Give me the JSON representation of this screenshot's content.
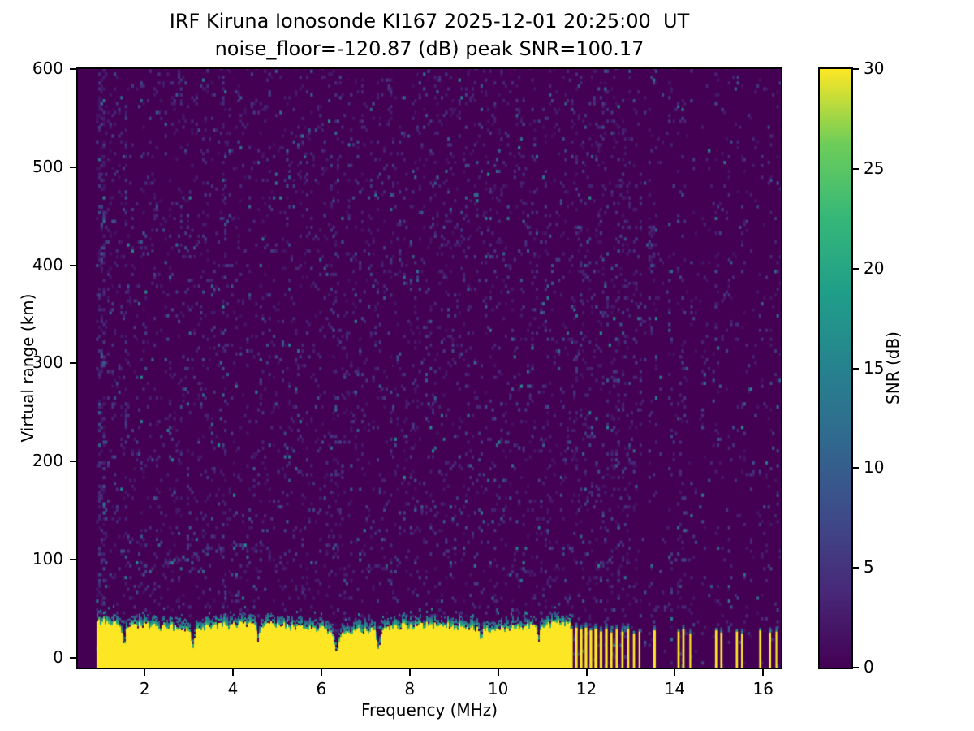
{
  "figure": {
    "title_line1": "IRF Kiruna Ionosonde KI167 2025-12-01 20:25:00  UT",
    "title_line2": "noise_floor=-120.87 (dB) peak SNR=100.17",
    "background_color": "#ffffff"
  },
  "chart_data": {
    "type": "heatmap",
    "title": "IRF Kiruna Ionosonde KI167 2025-12-01 20:25:00  UT",
    "subtitle": "noise_floor=-120.87 (dB) peak SNR=100.17",
    "station": "IRF Kiruna Ionosonde KI167",
    "timestamp_ut": "2025-12-01 20:25:00",
    "noise_floor_db": -120.87,
    "peak_snr_db": 100.17,
    "xlabel": "Frequency (MHz)",
    "ylabel": "Virtual range (km)",
    "colorbar_label": "SNR (dB)",
    "xlim": [
      0.49,
      16.4
    ],
    "ylim": [
      -10,
      600
    ],
    "clim": [
      0,
      30
    ],
    "x_ticks": [
      2,
      4,
      6,
      8,
      10,
      12,
      14,
      16
    ],
    "y_ticks": [
      0,
      100,
      200,
      300,
      400,
      500,
      600
    ],
    "colorbar_ticks": [
      0,
      5,
      10,
      15,
      20,
      25,
      30
    ],
    "colormap": "viridis",
    "viridis_stops": [
      [
        0,
        68,
        1,
        84
      ],
      [
        0.125,
        72,
        40,
        120
      ],
      [
        0.25,
        62,
        74,
        137
      ],
      [
        0.375,
        49,
        104,
        142
      ],
      [
        0.5,
        38,
        130,
        142
      ],
      [
        0.625,
        31,
        158,
        137
      ],
      [
        0.75,
        53,
        183,
        121
      ],
      [
        0.875,
        109,
        205,
        89
      ],
      [
        1,
        253,
        231,
        37
      ]
    ],
    "seed": 20251201,
    "data_freq_start": 0.9,
    "noise": {
      "freq_bin": 0.05,
      "range_bin": 3,
      "base_prob": 0.085,
      "min_snr": 1.5,
      "scale_snr": 2.3,
      "hot_frac": 0.04
    },
    "noise_stripes": [
      {
        "f": 1.0,
        "w": 0.09,
        "boost": 4.5
      },
      {
        "f": 1.55,
        "w": 0.04,
        "boost": 2.0
      },
      {
        "f": 2.95,
        "w": 0.04,
        "boost": 1.8
      },
      {
        "f": 3.78,
        "w": 0.05,
        "boost": 2.6
      },
      {
        "f": 5.52,
        "w": 0.04,
        "boost": 1.7
      },
      {
        "f": 6.33,
        "w": 0.04,
        "boost": 1.8
      },
      {
        "f": 7.55,
        "w": 0.04,
        "boost": 1.8
      },
      {
        "f": 9.3,
        "w": 0.04,
        "boost": 1.6
      },
      {
        "f": 11.05,
        "w": 0.04,
        "boost": 2.0
      },
      {
        "f": 13.45,
        "w": 0.05,
        "boost": 2.4
      },
      {
        "f": 13.9,
        "w": 0.05,
        "boost": 2.6
      },
      {
        "f": 14.6,
        "w": 0.04,
        "boost": 2.2
      },
      {
        "f": 15.2,
        "w": 0.04,
        "boost": 1.8
      },
      {
        "f": 16.05,
        "w": 0.04,
        "boost": 1.8
      }
    ],
    "faint_trace": {
      "points": [
        [
          2.35,
          93
        ],
        [
          2.8,
          100
        ],
        [
          3.3,
          106
        ],
        [
          3.8,
          111
        ],
        [
          4.3,
          112
        ],
        [
          4.65,
          109
        ]
      ],
      "halfwidth_km": 4,
      "extra_prob": 0.3
    },
    "hot_spots": [
      {
        "f": 13.45,
        "r": 415,
        "df": 0.08,
        "dr": 25,
        "prob": 0.45,
        "snr": 12
      }
    ],
    "echo_band": {
      "freq_range": [
        0.92,
        11.62
      ],
      "top_mean": 32,
      "top_jitter": 8,
      "snr": 30,
      "notches": [
        {
          "f": 1.52,
          "w": 0.05,
          "floor": 12
        },
        {
          "f": 3.08,
          "w": 0.05,
          "floor": 10
        },
        {
          "f": 4.55,
          "w": 0.04,
          "floor": 16
        },
        {
          "f": 6.33,
          "w": 0.07,
          "floor": 6
        },
        {
          "f": 7.28,
          "w": 0.06,
          "floor": 9
        },
        {
          "f": 9.6,
          "w": 0.04,
          "floor": 18
        },
        {
          "f": 10.9,
          "w": 0.04,
          "floor": 16
        }
      ]
    },
    "bars_emit_noise_stripes": true,
    "intermittent_bars": [
      {
        "f0": 11.63,
        "f1": 11.69,
        "top": 30
      },
      {
        "f0": 11.74,
        "f1": 11.8,
        "top": 31
      },
      {
        "f0": 11.85,
        "f1": 11.91,
        "top": 29
      },
      {
        "f0": 11.96,
        "f1": 12.02,
        "top": 31
      },
      {
        "f0": 12.07,
        "f1": 12.13,
        "top": 28
      },
      {
        "f0": 12.18,
        "f1": 12.25,
        "top": 30
      },
      {
        "f0": 12.3,
        "f1": 12.36,
        "top": 27
      },
      {
        "f0": 12.42,
        "f1": 12.48,
        "top": 30
      },
      {
        "f0": 12.54,
        "f1": 12.59,
        "top": 26
      },
      {
        "f0": 12.66,
        "f1": 12.71,
        "top": 29
      },
      {
        "f0": 12.79,
        "f1": 12.84,
        "top": 27
      },
      {
        "f0": 12.92,
        "f1": 12.97,
        "top": 30
      },
      {
        "f0": 13.05,
        "f1": 13.1,
        "top": 25
      },
      {
        "f0": 13.18,
        "f1": 13.22,
        "top": 27
      },
      {
        "f0": 13.51,
        "f1": 13.57,
        "top": 28
      },
      {
        "f0": 14.06,
        "f1": 14.11,
        "top": 27
      },
      {
        "f0": 14.17,
        "f1": 14.22,
        "top": 29
      },
      {
        "f0": 14.33,
        "f1": 14.37,
        "top": 25
      },
      {
        "f0": 14.91,
        "f1": 14.96,
        "top": 28
      },
      {
        "f0": 15.03,
        "f1": 15.08,
        "top": 26
      },
      {
        "f0": 15.38,
        "f1": 15.43,
        "top": 27
      },
      {
        "f0": 15.5,
        "f1": 15.54,
        "top": 25
      },
      {
        "f0": 15.91,
        "f1": 15.96,
        "top": 28
      },
      {
        "f0": 16.13,
        "f1": 16.18,
        "top": 26
      },
      {
        "f0": 16.28,
        "f1": 16.32,
        "top": 27
      }
    ]
  }
}
